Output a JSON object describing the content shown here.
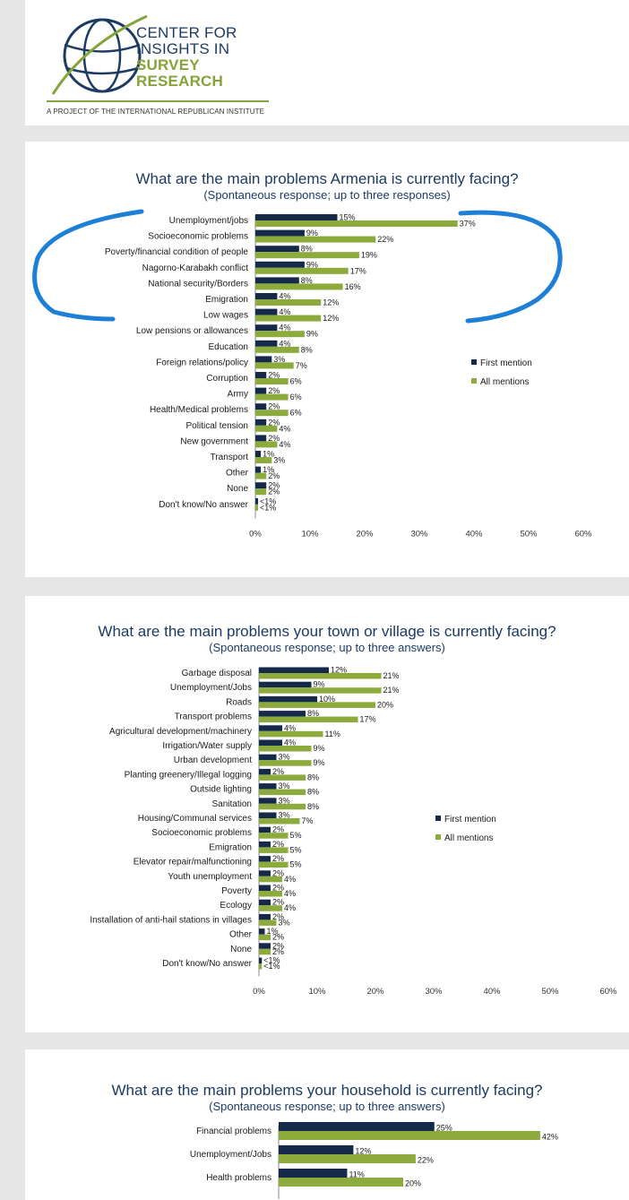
{
  "logo": {
    "line1": "CENTER FOR",
    "line2": "INSIGHTS IN",
    "line3": "SURVEY",
    "line4": "RESEARCH",
    "tagline": "A PROJECT OF THE INTERNATIONAL REPUBLICAN INSTITUTE"
  },
  "colors": {
    "first": "#15294a",
    "all": "#8cab3c",
    "title": "#1d3b62",
    "annotation": "#1e7fd6"
  },
  "chart_data": [
    {
      "type": "bar",
      "orientation": "horizontal",
      "title": "What are the main problems Armenia is currently facing?",
      "subtitle": "(Spontaneous response; up to three responses)",
      "categories": [
        "Unemployment/jobs",
        "Socioeconomic problems",
        "Poverty/financial condition of people",
        "Nagorno-Karabakh conflict",
        "National security/Borders",
        "Emigration",
        "Low wages",
        "Low pensions or allowances",
        "Education",
        "Foreign relations/policy",
        "Corruption",
        "Army",
        "Health/Medical problems",
        "Political tension",
        "New government",
        "Transport",
        "Other",
        "None",
        "Don't know/No answer"
      ],
      "series": [
        {
          "name": "First mention",
          "values": [
            15,
            9,
            8,
            9,
            8,
            4,
            4,
            4,
            4,
            3,
            2,
            2,
            2,
            2,
            2,
            1,
            1,
            2,
            0.5
          ],
          "labels": [
            "15%",
            "9%",
            "8%",
            "9%",
            "8%",
            "4%",
            "4%",
            "4%",
            "4%",
            "3%",
            "2%",
            "2%",
            "2%",
            "2%",
            "2%",
            "1%",
            "1%",
            "2%",
            "<1%"
          ]
        },
        {
          "name": "All mentions",
          "values": [
            37,
            22,
            19,
            17,
            16,
            12,
            12,
            9,
            8,
            7,
            6,
            6,
            6,
            4,
            4,
            3,
            2,
            2,
            0.5
          ],
          "labels": [
            "37%",
            "22%",
            "19%",
            "17%",
            "16%",
            "12%",
            "12%",
            "9%",
            "8%",
            "7%",
            "6%",
            "6%",
            "6%",
            "4%",
            "4%",
            "3%",
            "2%",
            "2%",
            "<1%"
          ]
        }
      ],
      "xlim": [
        0,
        60
      ],
      "ticks": [
        "0%",
        "10%",
        "20%",
        "30%",
        "40%",
        "50%",
        "60%"
      ],
      "legend_position": "right"
    },
    {
      "type": "bar",
      "orientation": "horizontal",
      "title": "What are the main problems your town or village is currently facing?",
      "subtitle": "(Spontaneous response; up to three answers)",
      "categories": [
        "Garbage disposal",
        "Unemployment/Jobs",
        "Roads",
        "Transport problems",
        "Agricultural development/machinery",
        "Irrigation/Water supply",
        "Urban development",
        "Planting greenery/Illegal logging",
        "Outside lighting",
        "Sanitation",
        "Housing/Communal services",
        "Socioeconomic problems",
        "Emigration",
        "Elevator repair/malfunctioning",
        "Youth unemployment",
        "Poverty",
        "Ecology",
        "Installation of anti-hail stations in villages",
        "Other",
        "None",
        "Don't know/No answer"
      ],
      "series": [
        {
          "name": "First mention",
          "values": [
            12,
            9,
            10,
            8,
            4,
            4,
            3,
            2,
            3,
            3,
            3,
            2,
            2,
            2,
            2,
            2,
            2,
            2,
            1,
            2,
            0.5
          ],
          "labels": [
            "12%",
            "9%",
            "10%",
            "8%",
            "4%",
            "4%",
            "3%",
            "2%",
            "3%",
            "3%",
            "3%",
            "2%",
            "2%",
            "2%",
            "2%",
            "2%",
            "2%",
            "2%",
            "1%",
            "2%",
            "<1%"
          ]
        },
        {
          "name": "All mentions",
          "values": [
            21,
            21,
            20,
            17,
            11,
            9,
            9,
            8,
            8,
            8,
            7,
            5,
            5,
            5,
            4,
            4,
            4,
            3,
            2,
            2,
            0.5
          ],
          "labels": [
            "21%",
            "21%",
            "20%",
            "17%",
            "11%",
            "9%",
            "9%",
            "8%",
            "8%",
            "8%",
            "7%",
            "5%",
            "5%",
            "5%",
            "4%",
            "4%",
            "4%",
            "3%",
            "2%",
            "2%",
            "<1%"
          ]
        }
      ],
      "xlim": [
        0,
        60
      ],
      "ticks": [
        "0%",
        "10%",
        "20%",
        "30%",
        "40%",
        "50%",
        "60%"
      ],
      "legend_position": "right"
    },
    {
      "type": "bar",
      "orientation": "horizontal",
      "title": "What are the main problems your household is currently facing?",
      "subtitle": "(Spontaneous response; up to three answers)",
      "categories": [
        "Financial problems",
        "Unemployment/Jobs",
        "Health problems"
      ],
      "series": [
        {
          "name": "First mention",
          "values": [
            25,
            12,
            11
          ],
          "labels": [
            "25%",
            "12%",
            "11%"
          ]
        },
        {
          "name": "All mentions",
          "values": [
            42,
            22,
            20
          ],
          "labels": [
            "42%",
            "22%",
            "20%"
          ]
        }
      ],
      "xlim": [
        0,
        60
      ]
    }
  ]
}
